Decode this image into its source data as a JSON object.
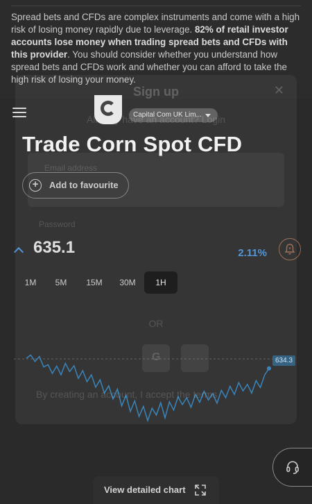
{
  "risk_warning": {
    "part1": "Spread bets and CFDs are complex instruments and come with a high risk of losing money rapidly due to leverage. ",
    "bold": "82% of retail investor accounts lose money when trading spread bets and CFDs with this provider",
    "part2": ". You should consider whether you understand how spread bets and CFDs work and whether you can afford to take the high risk of losing your money."
  },
  "header": {
    "entity_select": "Capital Com UK Lim..."
  },
  "page": {
    "title": "Trade Corn Spot CFD",
    "favourite_label": "Add to favourite",
    "price": "635.1",
    "change": "2.11%",
    "timeframes": [
      "1M",
      "5M",
      "15M",
      "30M",
      "1H"
    ],
    "active_timeframe": "1H",
    "last_price_tag": "634.3",
    "detail_button": "View detailed chart"
  },
  "modal": {
    "title": "Sign up",
    "subtitle": "Already have an account? Login",
    "email_label": "Email address",
    "password_label": "Password",
    "or_label": "OR",
    "social_google": "G",
    "social_apple": "",
    "terms": "By creating an account, I accept the terms"
  },
  "colors": {
    "accent_blue": "#4a8fd6",
    "alert_orange": "#9a6a50",
    "chart_line": "#2f7fb8"
  },
  "chart_data": {
    "type": "line",
    "title": "",
    "xlabel": "",
    "ylabel": "",
    "ylim": [
      620,
      645
    ],
    "values": [
      636.5,
      637.2,
      635.8,
      636.9,
      634.6,
      635.1,
      633.2,
      634.8,
      632.9,
      635.4,
      633.6,
      634.9,
      632.1,
      633.8,
      631.4,
      632.9,
      630.2,
      631.8,
      628.9,
      630.5,
      627.6,
      629.8,
      626.1,
      628.4,
      624.9,
      627.2,
      623.8,
      626.0,
      622.9,
      625.6,
      624.1,
      626.8,
      623.5,
      627.0,
      625.2,
      628.1,
      626.4,
      627.9,
      625.8,
      628.6,
      626.9,
      629.3,
      627.4,
      628.8,
      626.7,
      629.5,
      627.9,
      630.4,
      628.6,
      631.2,
      629.4,
      630.8,
      628.9,
      631.6,
      630.1,
      632.9,
      634.3
    ],
    "last_value": 634.3
  }
}
